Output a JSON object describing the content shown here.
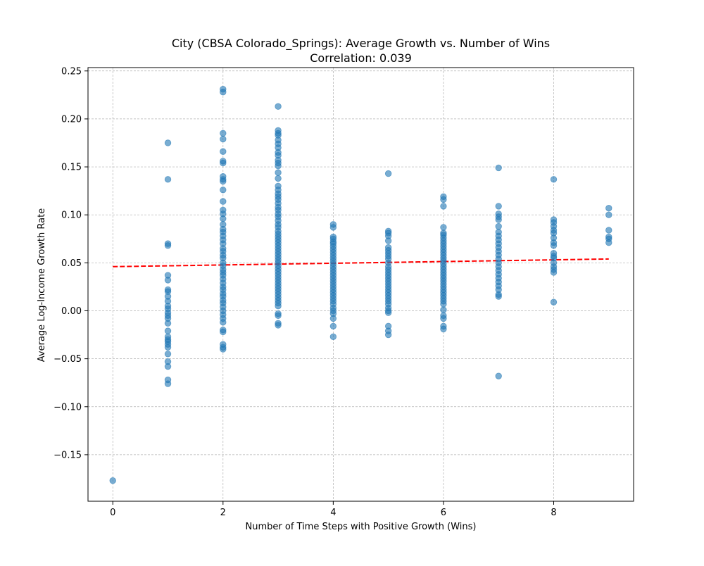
{
  "chart_data": {
    "type": "scatter",
    "title": "City (CBSA Colorado_Springs): Average Growth vs. Number of Wins",
    "subtitle": "Correlation: 0.039",
    "xlabel": "Number of Time Steps with Positive Growth (Wins)",
    "ylabel": "Average Log-Income Growth Rate",
    "xlim": [
      -0.45,
      9.45
    ],
    "ylim": [
      -0.1985,
      0.2535
    ],
    "xticks": [
      0,
      2,
      4,
      6,
      8
    ],
    "xtick_labels": [
      "0",
      "2",
      "4",
      "6",
      "8"
    ],
    "yticks": [
      -0.15,
      -0.1,
      -0.05,
      0.0,
      0.05,
      0.1,
      0.15,
      0.2,
      0.25
    ],
    "ytick_labels": [
      "−0.15",
      "−0.10",
      "−0.05",
      "0.00",
      "0.05",
      "0.10",
      "0.15",
      "0.20",
      "0.25"
    ],
    "grid": true,
    "colors": {
      "points": "#1f77b4",
      "trend": "#ff0000",
      "grid": "#b0b0b0"
    },
    "trend_line": {
      "x": [
        0,
        9
      ],
      "y": [
        0.046,
        0.054
      ],
      "style": "dashed"
    },
    "series": [
      {
        "values": [
          [
            0,
            -0.177
          ],
          [
            1,
            0.175
          ],
          [
            1,
            0.137
          ],
          [
            1,
            0.07
          ],
          [
            1,
            0.068
          ],
          [
            1,
            0.037
          ],
          [
            1,
            0.032
          ],
          [
            1,
            0.022
          ],
          [
            1,
            0.02
          ],
          [
            1,
            0.015
          ],
          [
            1,
            0.01
          ],
          [
            1,
            0.005
          ],
          [
            1,
            0.002
          ],
          [
            1,
            -0.002
          ],
          [
            1,
            -0.005
          ],
          [
            1,
            -0.008
          ],
          [
            1,
            -0.013
          ],
          [
            1,
            -0.021
          ],
          [
            1,
            -0.027
          ],
          [
            1,
            -0.03
          ],
          [
            1,
            -0.032
          ],
          [
            1,
            -0.035
          ],
          [
            1,
            -0.038
          ],
          [
            1,
            -0.045
          ],
          [
            1,
            -0.053
          ],
          [
            1,
            -0.058
          ],
          [
            1,
            -0.072
          ],
          [
            1,
            -0.076
          ],
          [
            2,
            0.231
          ],
          [
            2,
            0.228
          ],
          [
            2,
            0.185
          ],
          [
            2,
            0.179
          ],
          [
            2,
            0.166
          ],
          [
            2,
            0.156
          ],
          [
            2,
            0.154
          ],
          [
            2,
            0.14
          ],
          [
            2,
            0.137
          ],
          [
            2,
            0.135
          ],
          [
            2,
            0.126
          ],
          [
            2,
            0.114
          ],
          [
            2,
            0.105
          ],
          [
            2,
            0.101
          ],
          [
            2,
            0.096
          ],
          [
            2,
            0.09
          ],
          [
            2,
            0.085
          ],
          [
            2,
            0.082
          ],
          [
            2,
            0.078
          ],
          [
            2,
            0.074
          ],
          [
            2,
            0.07
          ],
          [
            2,
            0.065
          ],
          [
            2,
            0.062
          ],
          [
            2,
            0.058
          ],
          [
            2,
            0.055
          ],
          [
            2,
            0.05
          ],
          [
            2,
            0.047
          ],
          [
            2,
            0.043
          ],
          [
            2,
            0.04
          ],
          [
            2,
            0.037
          ],
          [
            2,
            0.033
          ],
          [
            2,
            0.029
          ],
          [
            2,
            0.025
          ],
          [
            2,
            0.022
          ],
          [
            2,
            0.018
          ],
          [
            2,
            0.015
          ],
          [
            2,
            0.011
          ],
          [
            2,
            0.008
          ],
          [
            2,
            0.004
          ],
          [
            2,
            0.0
          ],
          [
            2,
            -0.004
          ],
          [
            2,
            -0.008
          ],
          [
            2,
            -0.012
          ],
          [
            2,
            -0.02
          ],
          [
            2,
            -0.022
          ],
          [
            2,
            -0.035
          ],
          [
            2,
            -0.038
          ],
          [
            2,
            -0.04
          ],
          [
            3,
            0.213
          ],
          [
            3,
            0.188
          ],
          [
            3,
            0.185
          ],
          [
            3,
            0.183
          ],
          [
            3,
            0.178
          ],
          [
            3,
            0.174
          ],
          [
            3,
            0.17
          ],
          [
            3,
            0.165
          ],
          [
            3,
            0.162
          ],
          [
            3,
            0.157
          ],
          [
            3,
            0.154
          ],
          [
            3,
            0.151
          ],
          [
            3,
            0.144
          ],
          [
            3,
            0.138
          ],
          [
            3,
            0.13
          ],
          [
            3,
            0.126
          ],
          [
            3,
            0.122
          ],
          [
            3,
            0.119
          ],
          [
            3,
            0.116
          ],
          [
            3,
            0.112
          ],
          [
            3,
            0.108
          ],
          [
            3,
            0.105
          ],
          [
            3,
            0.101
          ],
          [
            3,
            0.098
          ],
          [
            3,
            0.094
          ],
          [
            3,
            0.09
          ],
          [
            3,
            0.087
          ],
          [
            3,
            0.083
          ],
          [
            3,
            0.08
          ],
          [
            3,
            0.077
          ],
          [
            3,
            0.074
          ],
          [
            3,
            0.071
          ],
          [
            3,
            0.068
          ],
          [
            3,
            0.065
          ],
          [
            3,
            0.062
          ],
          [
            3,
            0.059
          ],
          [
            3,
            0.056
          ],
          [
            3,
            0.053
          ],
          [
            3,
            0.05
          ],
          [
            3,
            0.047
          ],
          [
            3,
            0.044
          ],
          [
            3,
            0.041
          ],
          [
            3,
            0.038
          ],
          [
            3,
            0.035
          ],
          [
            3,
            0.032
          ],
          [
            3,
            0.029
          ],
          [
            3,
            0.026
          ],
          [
            3,
            0.023
          ],
          [
            3,
            0.02
          ],
          [
            3,
            0.017
          ],
          [
            3,
            0.014
          ],
          [
            3,
            0.011
          ],
          [
            3,
            0.008
          ],
          [
            3,
            0.005
          ],
          [
            3,
            -0.003
          ],
          [
            3,
            -0.005
          ],
          [
            3,
            -0.013
          ],
          [
            3,
            -0.015
          ],
          [
            4,
            0.09
          ],
          [
            4,
            0.087
          ],
          [
            4,
            0.077
          ],
          [
            4,
            0.075
          ],
          [
            4,
            0.072
          ],
          [
            4,
            0.07
          ],
          [
            4,
            0.067
          ],
          [
            4,
            0.064
          ],
          [
            4,
            0.061
          ],
          [
            4,
            0.058
          ],
          [
            4,
            0.055
          ],
          [
            4,
            0.052
          ],
          [
            4,
            0.049
          ],
          [
            4,
            0.046
          ],
          [
            4,
            0.043
          ],
          [
            4,
            0.04
          ],
          [
            4,
            0.037
          ],
          [
            4,
            0.034
          ],
          [
            4,
            0.031
          ],
          [
            4,
            0.028
          ],
          [
            4,
            0.025
          ],
          [
            4,
            0.022
          ],
          [
            4,
            0.019
          ],
          [
            4,
            0.016
          ],
          [
            4,
            0.013
          ],
          [
            4,
            0.01
          ],
          [
            4,
            0.007
          ],
          [
            4,
            0.003
          ],
          [
            4,
            0.0
          ],
          [
            4,
            -0.003
          ],
          [
            4,
            -0.008
          ],
          [
            4,
            -0.016
          ],
          [
            4,
            -0.027
          ],
          [
            5,
            0.143
          ],
          [
            5,
            0.083
          ],
          [
            5,
            0.081
          ],
          [
            5,
            0.078
          ],
          [
            5,
            0.073
          ],
          [
            5,
            0.066
          ],
          [
            5,
            0.063
          ],
          [
            5,
            0.06
          ],
          [
            5,
            0.057
          ],
          [
            5,
            0.054
          ],
          [
            5,
            0.05
          ],
          [
            5,
            0.046
          ],
          [
            5,
            0.043
          ],
          [
            5,
            0.04
          ],
          [
            5,
            0.037
          ],
          [
            5,
            0.034
          ],
          [
            5,
            0.031
          ],
          [
            5,
            0.028
          ],
          [
            5,
            0.025
          ],
          [
            5,
            0.022
          ],
          [
            5,
            0.019
          ],
          [
            5,
            0.016
          ],
          [
            5,
            0.013
          ],
          [
            5,
            0.01
          ],
          [
            5,
            0.007
          ],
          [
            5,
            0.003
          ],
          [
            5,
            0.0
          ],
          [
            5,
            -0.002
          ],
          [
            5,
            -0.016
          ],
          [
            5,
            -0.021
          ],
          [
            5,
            -0.025
          ],
          [
            6,
            0.119
          ],
          [
            6,
            0.116
          ],
          [
            6,
            0.109
          ],
          [
            6,
            0.087
          ],
          [
            6,
            0.081
          ],
          [
            6,
            0.079
          ],
          [
            6,
            0.076
          ],
          [
            6,
            0.073
          ],
          [
            6,
            0.07
          ],
          [
            6,
            0.067
          ],
          [
            6,
            0.064
          ],
          [
            6,
            0.061
          ],
          [
            6,
            0.058
          ],
          [
            6,
            0.055
          ],
          [
            6,
            0.052
          ],
          [
            6,
            0.049
          ],
          [
            6,
            0.046
          ],
          [
            6,
            0.043
          ],
          [
            6,
            0.04
          ],
          [
            6,
            0.037
          ],
          [
            6,
            0.034
          ],
          [
            6,
            0.031
          ],
          [
            6,
            0.028
          ],
          [
            6,
            0.025
          ],
          [
            6,
            0.022
          ],
          [
            6,
            0.019
          ],
          [
            6,
            0.016
          ],
          [
            6,
            0.013
          ],
          [
            6,
            0.01
          ],
          [
            6,
            0.007
          ],
          [
            6,
            0.001
          ],
          [
            6,
            -0.005
          ],
          [
            6,
            -0.008
          ],
          [
            6,
            -0.016
          ],
          [
            6,
            -0.019
          ],
          [
            7,
            0.149
          ],
          [
            7,
            0.109
          ],
          [
            7,
            0.101
          ],
          [
            7,
            0.098
          ],
          [
            7,
            0.095
          ],
          [
            7,
            0.088
          ],
          [
            7,
            0.082
          ],
          [
            7,
            0.078
          ],
          [
            7,
            0.074
          ],
          [
            7,
            0.07
          ],
          [
            7,
            0.066
          ],
          [
            7,
            0.062
          ],
          [
            7,
            0.058
          ],
          [
            7,
            0.054
          ],
          [
            7,
            0.05
          ],
          [
            7,
            0.046
          ],
          [
            7,
            0.042
          ],
          [
            7,
            0.038
          ],
          [
            7,
            0.034
          ],
          [
            7,
            0.03
          ],
          [
            7,
            0.026
          ],
          [
            7,
            0.022
          ],
          [
            7,
            0.017
          ],
          [
            7,
            0.015
          ],
          [
            7,
            -0.068
          ],
          [
            8,
            0.137
          ],
          [
            8,
            0.095
          ],
          [
            8,
            0.092
          ],
          [
            8,
            0.088
          ],
          [
            8,
            0.084
          ],
          [
            8,
            0.081
          ],
          [
            8,
            0.076
          ],
          [
            8,
            0.071
          ],
          [
            8,
            0.068
          ],
          [
            8,
            0.06
          ],
          [
            8,
            0.057
          ],
          [
            8,
            0.055
          ],
          [
            8,
            0.05
          ],
          [
            8,
            0.046
          ],
          [
            8,
            0.043
          ],
          [
            8,
            0.04
          ],
          [
            8,
            0.009
          ],
          [
            9,
            0.107
          ],
          [
            9,
            0.1
          ],
          [
            9,
            0.084
          ],
          [
            9,
            0.077
          ],
          [
            9,
            0.075
          ],
          [
            9,
            0.071
          ]
        ]
      }
    ]
  }
}
